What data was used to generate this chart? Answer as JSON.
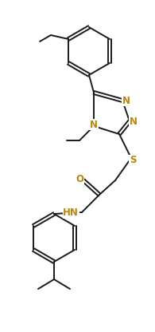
{
  "bg_color": "#ffffff",
  "line_color": "#1a1a1a",
  "atom_colors": {
    "N": "#b8860b",
    "S": "#b8860b",
    "O": "#b8860b"
  },
  "font_size_atom": 8.5,
  "line_width": 1.4,
  "figsize": [
    1.95,
    4.16
  ],
  "dpi": 100
}
